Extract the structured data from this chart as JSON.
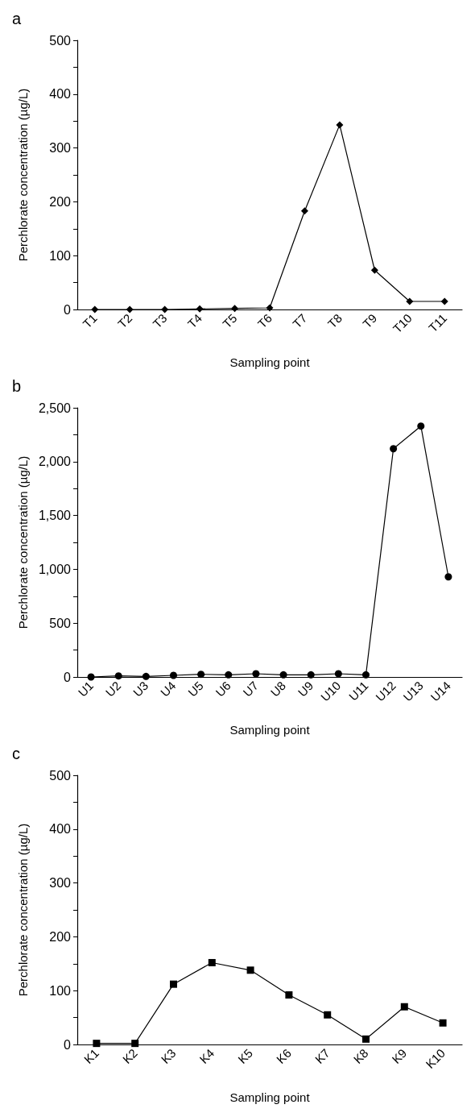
{
  "chart_data": [
    {
      "type": "line",
      "title": "a",
      "xlabel": "Sampling point",
      "ylabel": "Perchlorate concentration (µg/L)",
      "categories": [
        "T1",
        "T2",
        "T3",
        "T4",
        "T5",
        "T6",
        "T7",
        "T8",
        "T9",
        "T10",
        "T11"
      ],
      "series": [
        {
          "color": "#000000",
          "values": [
            0,
            0,
            0,
            1,
            2,
            3,
            183,
            343,
            73,
            15,
            15
          ]
        }
      ],
      "ylim": [
        0,
        500
      ],
      "yticks": [
        0,
        {
          "value": 50,
          "label": null
        },
        100,
        {
          "value": 150,
          "label": null
        },
        200,
        {
          "value": 250,
          "label": null
        },
        300,
        {
          "value": 350,
          "label": null
        },
        400,
        {
          "value": 450,
          "label": null
        },
        500
      ],
      "grid": false,
      "marker": "diamond",
      "line_style": "solid"
    },
    {
      "type": "line",
      "title": "b",
      "xlabel": "Sampling point",
      "ylabel": "Perchlorate concentration (µg/L)",
      "categories": [
        "U1",
        "U2",
        "U3",
        "U4",
        "U5",
        "U6",
        "U7",
        "U8",
        "U9",
        "U10",
        "U11",
        "U12",
        "U13",
        "U14"
      ],
      "series": [
        {
          "color": "#000000",
          "values": [
            0,
            10,
            5,
            15,
            25,
            20,
            30,
            20,
            20,
            30,
            20,
            2120,
            2330,
            930
          ]
        }
      ],
      "ylim": [
        0,
        2500
      ],
      "yticks": [
        0,
        {
          "value": 250,
          "label": null
        },
        500,
        {
          "value": 750,
          "label": null
        },
        {
          "value": 1000,
          "label": "1,000"
        },
        {
          "value": 1250,
          "label": null
        },
        {
          "value": 1500,
          "label": "1,500"
        },
        {
          "value": 1750,
          "label": null
        },
        {
          "value": 2000,
          "label": "2,000"
        },
        {
          "value": 2250,
          "label": null
        },
        {
          "value": 2500,
          "label": "2,500"
        }
      ],
      "grid": false,
      "marker": "circle",
      "line_style": "solid"
    },
    {
      "type": "line",
      "title": "c",
      "xlabel": "Sampling point",
      "ylabel": "Perchlorate concentration (µg/L)",
      "categories": [
        "K1",
        "K2",
        "K3",
        "K4",
        "K5",
        "K6",
        "K7",
        "K8",
        "K9",
        "K10"
      ],
      "series": [
        {
          "color": "#000000",
          "values": [
            2,
            2,
            112,
            152,
            138,
            92,
            55,
            10,
            70,
            40
          ]
        }
      ],
      "ylim": [
        0,
        500
      ],
      "yticks": [
        0,
        {
          "value": 50,
          "label": null
        },
        100,
        {
          "value": 150,
          "label": null
        },
        200,
        {
          "value": 250,
          "label": null
        },
        300,
        {
          "value": 350,
          "label": null
        },
        400,
        {
          "value": 450,
          "label": null
        },
        500
      ],
      "grid": false,
      "marker": "square",
      "line_style": "solid"
    }
  ]
}
